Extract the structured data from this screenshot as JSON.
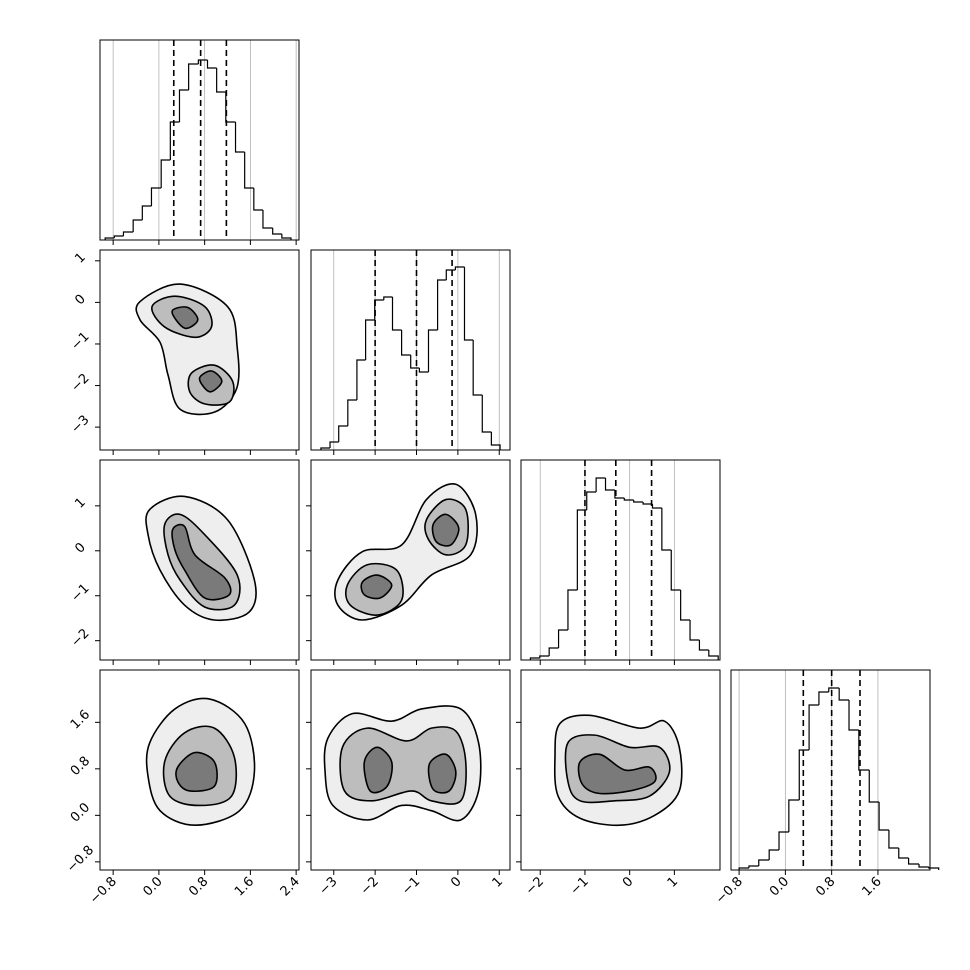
{
  "chart_data": {
    "type": "corner",
    "line_color": "#000000",
    "contour_fills": [
      "#eeeeee",
      "#bdbdbd",
      "#7a7a7a"
    ],
    "grid": true,
    "parameters": [
      {
        "lim": [
          -1.03,
          2.45
        ],
        "ticks": [
          {
            "value": -0.8,
            "label": "−0.8"
          },
          {
            "value": 0,
            "label": "0.0"
          },
          0.8,
          1.6,
          2.4
        ]
      },
      {
        "lim": [
          -3.55,
          1.26
        ],
        "ticks": [
          {
            "value": -3,
            "label": "−3"
          },
          {
            "value": -2,
            "label": "−2"
          },
          {
            "value": -1,
            "label": "−1"
          },
          0,
          1
        ]
      },
      {
        "lim": [
          -2.43,
          2.02
        ],
        "ticks": [
          {
            "value": -2,
            "label": "−2"
          },
          {
            "value": -1,
            "label": "−1"
          },
          0,
          1
        ]
      },
      {
        "lim": [
          -0.94,
          2.5
        ],
        "ticks": [
          {
            "value": -0.8,
            "label": "−0.8"
          },
          {
            "value": 0,
            "label": "0.0"
          },
          0.8,
          1.6
        ]
      }
    ],
    "histograms": [
      {
        "ylim": [
          0,
          200
        ],
        "bins": [
          -0.94,
          -0.78,
          -0.62,
          -0.45,
          -0.29,
          -0.13,
          0.04,
          0.2,
          0.36,
          0.52,
          0.69,
          0.85,
          1.01,
          1.17,
          1.34,
          1.5,
          1.66,
          1.82,
          1.99,
          2.15,
          2.31
        ],
        "values": [
          2,
          4,
          8,
          20,
          34,
          52,
          80,
          118,
          150,
          176,
          180,
          172,
          148,
          118,
          88,
          52,
          30,
          12,
          6,
          2
        ],
        "quantiles": [
          0.26,
          0.73,
          1.18
        ]
      },
      {
        "ylim": [
          0,
          200
        ],
        "bins": [
          -3.31,
          -3.09,
          -2.88,
          -2.66,
          -2.44,
          -2.23,
          -2.01,
          -1.79,
          -1.58,
          -1.36,
          -1.14,
          -0.93,
          -0.71,
          -0.49,
          -0.28,
          -0.06,
          0.16,
          0.37,
          0.59,
          0.81,
          1.02
        ],
        "values": [
          2,
          8,
          24,
          50,
          90,
          130,
          150,
          153,
          120,
          95,
          82,
          78,
          120,
          170,
          180,
          183,
          110,
          55,
          18,
          5
        ],
        "quantiles": [
          -2.0,
          -1.0,
          -0.14
        ]
      },
      {
        "ylim": [
          0,
          200
        ],
        "bins": [
          -2.22,
          -2.01,
          -1.8,
          -1.59,
          -1.38,
          -1.17,
          -0.96,
          -0.75,
          -0.54,
          -0.33,
          -0.12,
          0.09,
          0.3,
          0.51,
          0.72,
          0.93,
          1.14,
          1.35,
          1.56,
          1.77,
          1.98
        ],
        "values": [
          2,
          4,
          12,
          30,
          70,
          150,
          168,
          182,
          170,
          162,
          160,
          158,
          156,
          152,
          110,
          70,
          40,
          20,
          10,
          4
        ],
        "quantiles": [
          -1.0,
          -0.31,
          0.49
        ]
      },
      {
        "ylim": [
          0,
          200
        ],
        "bins": [
          -0.8,
          -0.63,
          -0.46,
          -0.28,
          -0.11,
          0.06,
          0.24,
          0.41,
          0.58,
          0.75,
          0.93,
          1.1,
          1.27,
          1.45,
          1.62,
          1.79,
          1.96,
          2.13,
          2.31,
          2.48,
          2.65
        ],
        "values": [
          2,
          4,
          10,
          20,
          38,
          70,
          120,
          165,
          178,
          182,
          170,
          140,
          100,
          68,
          40,
          22,
          12,
          6,
          3,
          2
        ],
        "quantiles": [
          0.31,
          0.8,
          1.29
        ]
      }
    ],
    "pairs": [
      {
        "contours": [
          [
            {
              "x": [
                -0.33,
                0.37,
                1.2,
                1.37,
                1.36,
                0.97,
                0.37,
                0.16,
                0.02,
                -0.33
              ],
              "y": [
                0.02,
                0.44,
                -0.1,
                -1.09,
                -2.07,
                -2.64,
                -2.57,
                -1.75,
                -0.96,
                -0.42
              ]
            }
          ],
          [
            {
              "x": [
                -0.12,
                0.28,
                0.8,
                0.92,
                0.63,
                0.1
              ],
              "y": [
                -0.1,
                0.15,
                -0.1,
                -0.59,
                -0.84,
                -0.59
              ]
            },
            {
              "x": [
                0.57,
                0.97,
                1.29,
                1.23,
                0.8,
                0.54
              ],
              "y": [
                -1.7,
                -1.51,
                -1.9,
                -2.4,
                -2.44,
                -2.15
              ]
            }
          ],
          [
            {
              "x": [
                0.23,
                0.5,
                0.68,
                0.45
              ],
              "y": [
                -0.22,
                -0.12,
                -0.42,
                -0.62
              ]
            },
            {
              "x": [
                0.71,
                0.92,
                1.1,
                0.89
              ],
              "y": [
                -1.83,
                -1.65,
                -1.9,
                -2.15
              ]
            }
          ]
        ]
      },
      {
        "contours": [
          [
            {
              "x": [
                -0.16,
                0.45,
                1.2,
                1.67,
                1.58,
                0.97,
                0.45,
                0.02,
                -0.19
              ],
              "y": [
                0.92,
                1.21,
                0.69,
                -0.65,
                -1.36,
                -1.54,
                -1.21,
                -0.43,
                0.36
              ]
            }
          ],
          [
            {
              "x": [
                0.1,
                0.37,
                0.8,
                1.37,
                1.32,
                0.8,
                0.37,
                0.16
              ],
              "y": [
                0.58,
                0.81,
                0.36,
                -0.54,
                -1.21,
                -1.25,
                -0.65,
                -0.09
              ]
            }
          ],
          [
            {
              "x": [
                0.24,
                0.45,
                0.63,
                1.15,
                1.23,
                0.8,
                0.45,
                0.28
              ],
              "y": [
                0.47,
                0.54,
                -0.09,
                -0.6,
                -0.98,
                -1.05,
                -0.43,
                0.02
              ]
            }
          ]
        ]
      },
      {
        "contours": [
          [
            {
              "x": [
                -2.9,
                -2.31,
                -1.36,
                -0.76,
                -0.05,
                0.43,
                0.31,
                -0.64,
                -1.36,
                -2.31,
                -2.9
              ],
              "y": [
                -0.65,
                -0.02,
                0.13,
                1.14,
                1.48,
                0.81,
                -0.09,
                -0.54,
                -1.21,
                -1.54,
                -1.21
              ]
            }
          ],
          [
            {
              "x": [
                -2.67,
                -2.19,
                -1.48,
                -1.36,
                -1.95,
                -2.6
              ],
              "y": [
                -0.76,
                -0.31,
                -0.43,
                -1.1,
                -1.43,
                -1.21
              ]
            },
            {
              "x": [
                -0.76,
                -0.29,
                0.19,
                0.19,
                -0.29,
                -0.71
              ],
              "y": [
                0.69,
                1.14,
                0.92,
                0.13,
                -0.09,
                0.25
              ]
            }
          ],
          [
            {
              "x": [
                -2.31,
                -1.95,
                -1.6,
                -1.88,
                -2.26
              ],
              "y": [
                -0.7,
                -0.54,
                -0.76,
                -1.05,
                -0.98
              ]
            },
            {
              "x": [
                -0.6,
                -0.29,
                0.02,
                -0.17,
                -0.52
              ],
              "y": [
                0.58,
                0.81,
                0.51,
                0.13,
                0.2
              ]
            }
          ]
        ]
      },
      {
        "contours": [
          [
            {
              "x": [
                -0.16,
                0.28,
                0.89,
                1.5,
                1.67,
                1.41,
                0.63,
                0.02,
                -0.19
              ],
              "y": [
                1.25,
                1.83,
                2.0,
                1.58,
                0.75,
                0.08,
                -0.17,
                0.08,
                0.67
              ]
            }
          ],
          [
            {
              "x": [
                0.1,
                0.45,
                0.97,
                1.32,
                1.27,
                0.71,
                0.19
              ],
              "y": [
                0.92,
                1.42,
                1.5,
                1.0,
                0.33,
                0.17,
                0.33
              ]
            }
          ],
          [
            {
              "x": [
                0.33,
                0.63,
                0.97,
                0.97,
                0.54,
                0.33
              ],
              "y": [
                0.83,
                1.08,
                0.92,
                0.5,
                0.42,
                0.58
              ]
            }
          ]
        ]
      },
      {
        "contours": [
          [
            {
              "x": [
                -3.14,
                -2.55,
                -1.6,
                -0.88,
                0.07,
                0.5,
                0.5,
                0.07,
                -0.64,
                -1.36,
                -2.19,
                -3.02,
                -3.21
              ],
              "y": [
                1.33,
                1.75,
                1.62,
                1.83,
                1.83,
                1.25,
                0.42,
                -0.08,
                0.08,
                0.17,
                -0.08,
                0.17,
                0.75
              ]
            }
          ],
          [
            {
              "x": [
                -2.79,
                -2.19,
                -1.24,
                -0.64,
                -0.05,
                0.19,
                0.07,
                -0.64,
                -1.12,
                -2.07,
                -2.74
              ],
              "y": [
                1.17,
                1.5,
                1.28,
                1.5,
                1.45,
                0.92,
                0.25,
                0.25,
                0.42,
                0.25,
                0.42
              ]
            }
          ],
          [
            {
              "x": [
                -2.26,
                -1.95,
                -1.6,
                -1.71,
                -2.12
              ],
              "y": [
                0.92,
                1.17,
                0.92,
                0.5,
                0.42
              ]
            },
            {
              "x": [
                -0.69,
                -0.29,
                -0.05,
                -0.21,
                -0.6
              ],
              "y": [
                0.88,
                1.05,
                0.75,
                0.42,
                0.45
              ]
            }
          ]
        ]
      },
      {
        "contours": [
          [
            {
              "x": [
                -1.56,
                -0.89,
                0.22,
                0.78,
                1.11,
                1.11,
                0.56,
                -0.22,
                -1.11,
                -1.6,
                -1.67
              ],
              "y": [
                1.58,
                1.72,
                1.5,
                1.62,
                1.17,
                0.42,
                0,
                -0.17,
                -0.05,
                0.33,
                1.0
              ]
            }
          ],
          [
            {
              "x": [
                -1.38,
                -0.78,
                0,
                0.67,
                0.89,
                0.44,
                -0.33,
                -1.11,
                -1.38
              ],
              "y": [
                1.25,
                1.38,
                1.17,
                1.17,
                0.75,
                0.33,
                0.25,
                0.25,
                0.58
              ]
            }
          ],
          [
            {
              "x": [
                -1.11,
                -0.67,
                -0.11,
                0.44,
                0.56,
                0,
                -0.71,
                -1.07
              ],
              "y": [
                0.92,
                1.05,
                0.78,
                0.83,
                0.58,
                0.42,
                0.38,
                0.55
              ]
            }
          ]
        ]
      }
    ]
  }
}
